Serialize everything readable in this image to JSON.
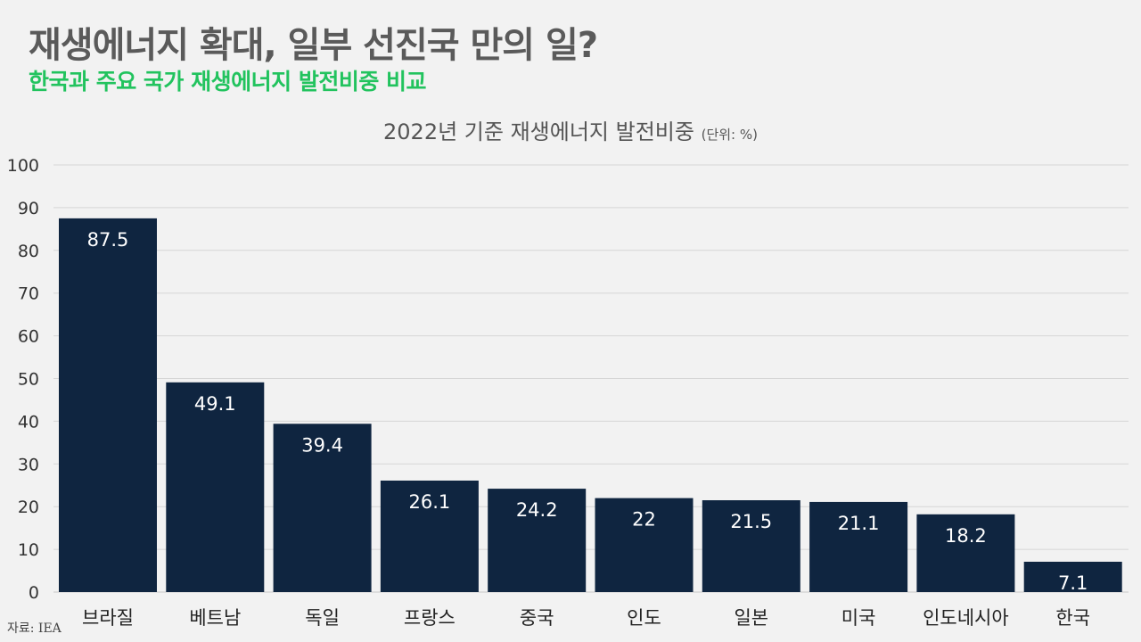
{
  "header": {
    "title": "재생에너지 확대, 일부 선진국 만의 일?",
    "subtitle": "한국과 주요 국가 재생에너지 발전비중 비교"
  },
  "chart_data": {
    "type": "bar",
    "title": "2022년 기준 재생에너지 발전비중",
    "unit_label": "(단위: %)",
    "categories": [
      "브라질",
      "베트남",
      "독일",
      "프랑스",
      "중국",
      "인도",
      "일본",
      "미국",
      "인도네시아",
      "한국"
    ],
    "values": [
      87.5,
      49.1,
      39.4,
      26.1,
      24.2,
      22,
      21.5,
      21.1,
      18.2,
      7.1
    ],
    "value_labels": [
      "87.5",
      "49.1",
      "39.4",
      "26.1",
      "24.2",
      "22",
      "21.5",
      "21.1",
      "18.2",
      "7.1"
    ],
    "ylim": [
      0,
      100
    ],
    "yticks": [
      0,
      10,
      20,
      30,
      40,
      50,
      60,
      70,
      80,
      90,
      100
    ],
    "grid": true,
    "legend": "none",
    "bar_color": "#0f2540",
    "label_color": "#ffffff"
  },
  "footer": {
    "source": "자료: IEA"
  }
}
